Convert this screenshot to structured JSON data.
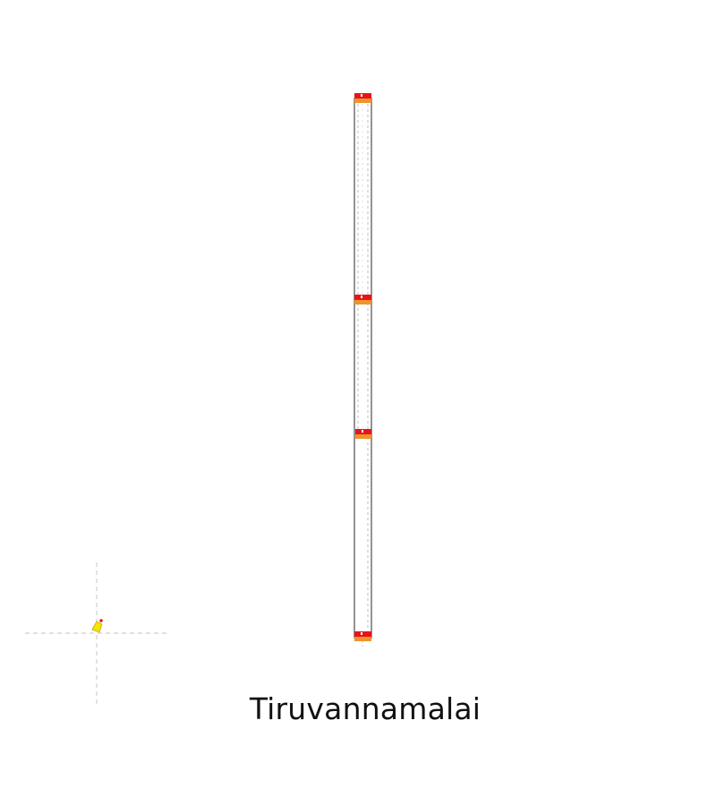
{
  "map": {
    "place_name": "Tiruvannamalai",
    "colors": {
      "track_outline": "#7a7a7a",
      "track_dash": "#c8c8c8",
      "marker_red": "#e8141c",
      "marker_orange": "#f0932b",
      "locator_yellow": "#f2e600",
      "crosshair": "#cfcfcf",
      "background": "#ffffff"
    },
    "icons": {
      "stop_marker": "stop-marker-icon",
      "locator": "location-pin-icon",
      "crosshair": "crosshair-icon"
    }
  }
}
